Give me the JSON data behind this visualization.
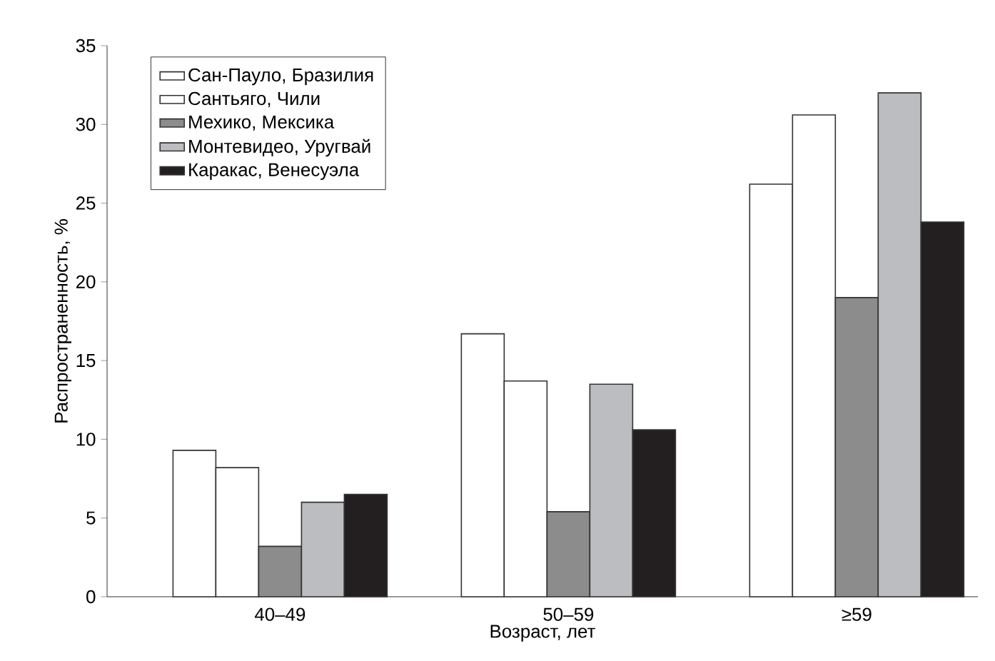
{
  "chart_data": {
    "type": "bar",
    "xlabel": "Возраст, лет",
    "ylabel": "Распространенность, %",
    "categories": [
      "40–49",
      "50–59",
      "≥59"
    ],
    "series": [
      {
        "name": "Сан-Пауло, Бразилия",
        "color": "#ffffff",
        "values": [
          9.3,
          16.7,
          26.2
        ]
      },
      {
        "name": "Сантьяго, Чили",
        "color": "#ffffff",
        "values": [
          8.2,
          13.7,
          30.6
        ]
      },
      {
        "name": "Мехико, Мексика",
        "color": "#8c8c8c",
        "values": [
          3.2,
          5.4,
          19.0
        ]
      },
      {
        "name": "Монтевидео, Уругвай",
        "color": "#bcbdc0",
        "values": [
          6.0,
          13.5,
          32.0
        ]
      },
      {
        "name": "Каракас, Венесуэла",
        "color": "#231f20",
        "values": [
          6.5,
          10.6,
          23.8
        ]
      }
    ],
    "ylim": [
      0,
      35
    ],
    "yticks": [
      0,
      5,
      10,
      15,
      20,
      25,
      30,
      35
    ],
    "grid": false,
    "legend": "top left"
  }
}
